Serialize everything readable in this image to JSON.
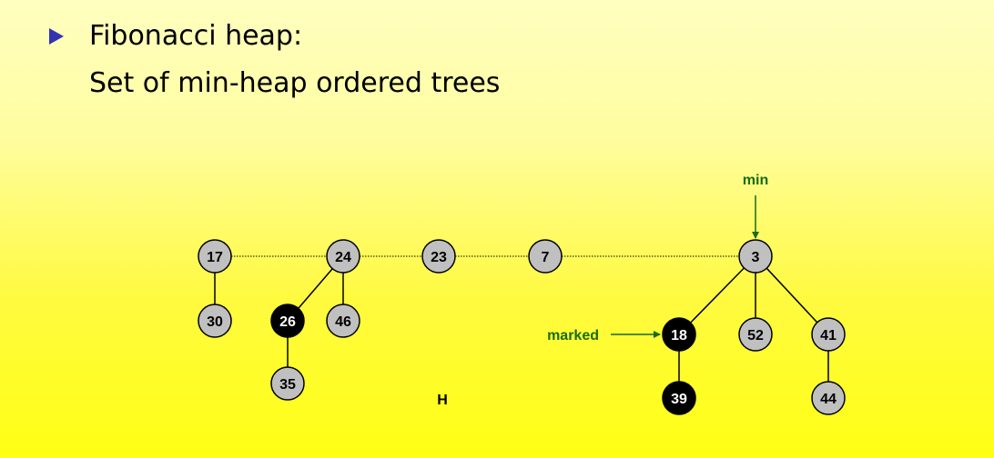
{
  "bullet": {
    "line1": "Fibonacci heap:",
    "line2": "Set of min-heap ordered trees"
  },
  "colors": {
    "node_fill": "#c0c0c0",
    "marked_fill": "#000000",
    "annotation": "#1a6b10",
    "bullet": "#3333b2"
  },
  "annotations": {
    "min_label": "min",
    "marked_label": "marked",
    "heap_label": "H"
  },
  "nodes": [
    {
      "id": "n17",
      "key": "17",
      "marked": false
    },
    {
      "id": "n24",
      "key": "24",
      "marked": false
    },
    {
      "id": "n23",
      "key": "23",
      "marked": false
    },
    {
      "id": "n7",
      "key": "7",
      "marked": false
    },
    {
      "id": "n3",
      "key": "3",
      "marked": false
    },
    {
      "id": "n30",
      "key": "30",
      "marked": false
    },
    {
      "id": "n26",
      "key": "26",
      "marked": true
    },
    {
      "id": "n46",
      "key": "46",
      "marked": false
    },
    {
      "id": "n35",
      "key": "35",
      "marked": false
    },
    {
      "id": "n18",
      "key": "18",
      "marked": true
    },
    {
      "id": "n52",
      "key": "52",
      "marked": false
    },
    {
      "id": "n41",
      "key": "41",
      "marked": false
    },
    {
      "id": "n39",
      "key": "39",
      "marked": true
    },
    {
      "id": "n44",
      "key": "44",
      "marked": false
    }
  ],
  "root_list": [
    "n17",
    "n24",
    "n23",
    "n7",
    "n3"
  ],
  "edges": [
    [
      "n17",
      "n30"
    ],
    [
      "n24",
      "n26"
    ],
    [
      "n24",
      "n46"
    ],
    [
      "n26",
      "n35"
    ],
    [
      "n3",
      "n18"
    ],
    [
      "n3",
      "n52"
    ],
    [
      "n3",
      "n41"
    ],
    [
      "n18",
      "n39"
    ],
    [
      "n41",
      "n44"
    ]
  ]
}
